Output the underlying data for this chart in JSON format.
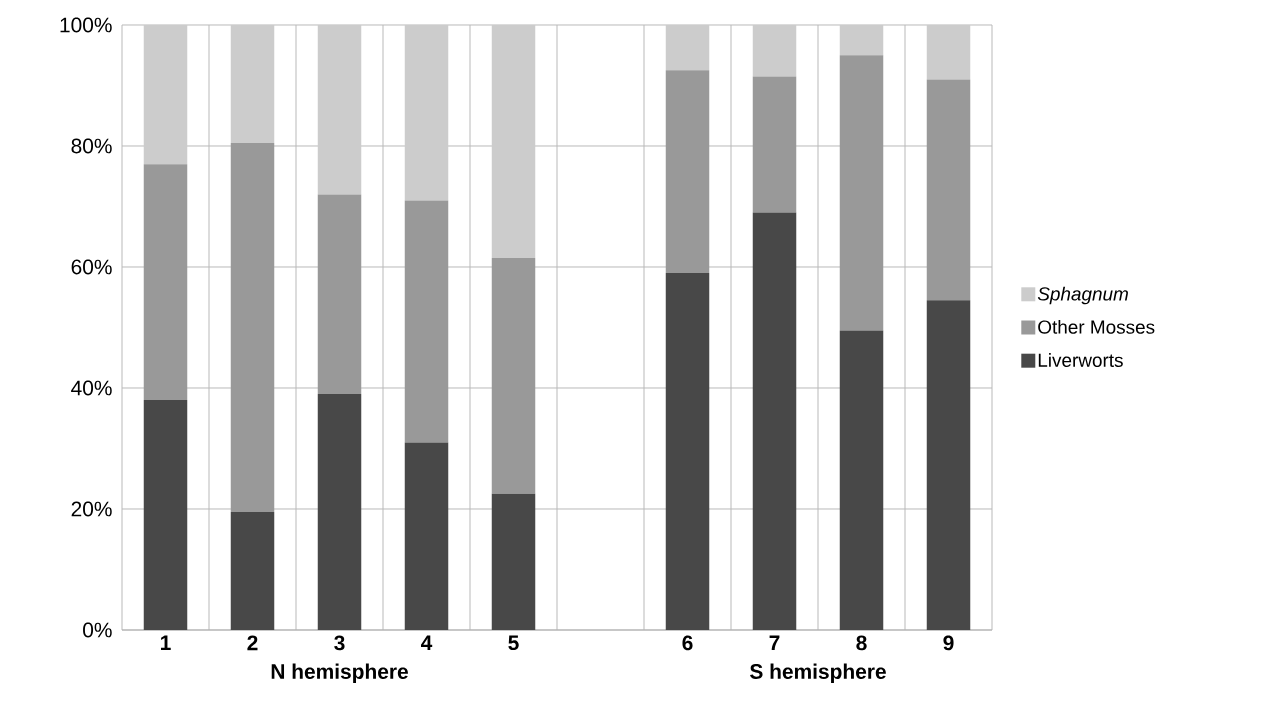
{
  "chart_data": {
    "type": "bar",
    "stacked": true,
    "categories": [
      "1",
      "2",
      "3",
      "4",
      "5",
      null,
      "6",
      "7",
      "8",
      "9"
    ],
    "series": [
      {
        "name": "Liverworts",
        "color": "#484848",
        "values": [
          38,
          19.5,
          39,
          31,
          22.5,
          null,
          59,
          69,
          49.5,
          54.5
        ]
      },
      {
        "name": "Other Mosses",
        "color": "#999999",
        "values": [
          39,
          61,
          33,
          40,
          39,
          null,
          33.5,
          22.5,
          45.5,
          36.5
        ]
      },
      {
        "name": "*Sphagnum*",
        "color": "#cccccc",
        "values": [
          23,
          19.5,
          28,
          29,
          38.5,
          null,
          7.5,
          8.5,
          5,
          9
        ]
      }
    ],
    "ylim": [
      0,
      100
    ],
    "yticks": [
      {
        "value": 0,
        "label": "0%"
      },
      {
        "value": 20,
        "label": "20%"
      },
      {
        "value": 40,
        "label": "40%"
      },
      {
        "value": 60,
        "label": "60%"
      },
      {
        "value": 80,
        "label": "80%"
      },
      {
        "value": 100,
        "label": "100%"
      }
    ],
    "grid": true,
    "legend": "right",
    "annotations": [
      "N hemisphere",
      "S hemisphere"
    ]
  }
}
